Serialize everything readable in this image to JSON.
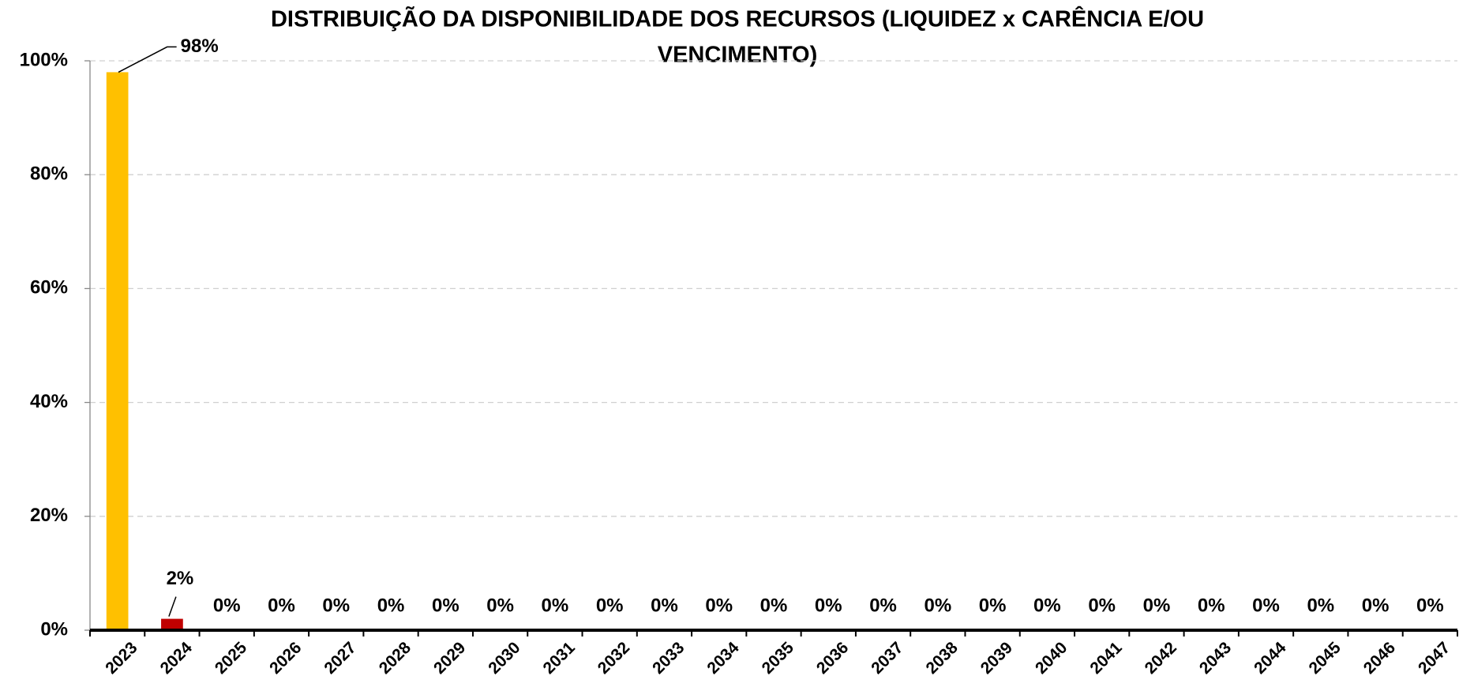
{
  "chart_data": {
    "type": "bar",
    "title": [
      "DISTRIBUIÇÃO DA DISPONIBILIDADE DOS RECURSOS  (LIQUIDEZ x CARÊNCIA E/OU",
      "VENCIMENTO)"
    ],
    "categories": [
      "2023",
      "2024",
      "2025",
      "2026",
      "2027",
      "2028",
      "2029",
      "2030",
      "2031",
      "2032",
      "2033",
      "2034",
      "2035",
      "2036",
      "2037",
      "2038",
      "2039",
      "2040",
      "2041",
      "2042",
      "2043",
      "2044",
      "2045",
      "2046",
      "2047"
    ],
    "values": [
      98,
      2,
      0,
      0,
      0,
      0,
      0,
      0,
      0,
      0,
      0,
      0,
      0,
      0,
      0,
      0,
      0,
      0,
      0,
      0,
      0,
      0,
      0,
      0,
      0
    ],
    "value_labels": [
      "98%",
      "2%",
      "0%",
      "0%",
      "0%",
      "0%",
      "0%",
      "0%",
      "0%",
      "0%",
      "0%",
      "0%",
      "0%",
      "0%",
      "0%",
      "0%",
      "0%",
      "0%",
      "0%",
      "0%",
      "0%",
      "0%",
      "0%",
      "0%",
      "0%"
    ],
    "colors": [
      "#FFC000",
      "#C00000",
      "#C00000",
      "#C00000",
      "#C00000",
      "#C00000",
      "#C00000",
      "#C00000",
      "#C00000",
      "#C00000",
      "#C00000",
      "#C00000",
      "#C00000",
      "#C00000",
      "#C00000",
      "#C00000",
      "#C00000",
      "#C00000",
      "#C00000",
      "#C00000",
      "#C00000",
      "#C00000",
      "#C00000",
      "#C00000",
      "#C00000"
    ],
    "ylim": [
      0,
      100
    ],
    "yticks": [
      {
        "value": 0,
        "label": "0%"
      },
      {
        "value": 20,
        "label": "20%"
      },
      {
        "value": 40,
        "label": "40%"
      },
      {
        "value": 60,
        "label": "60%"
      },
      {
        "value": 80,
        "label": "80%"
      },
      {
        "value": 100,
        "label": "100%"
      }
    ],
    "grid": true
  }
}
